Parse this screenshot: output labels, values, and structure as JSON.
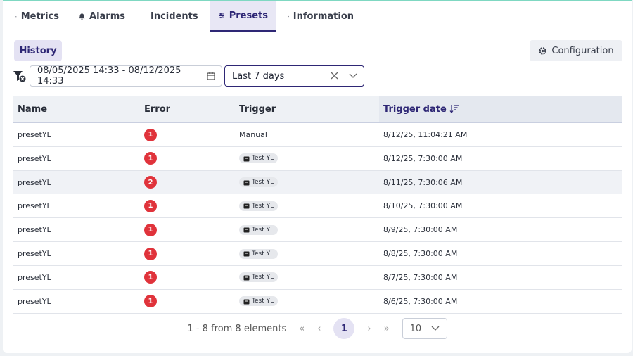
{
  "tabs": [
    "Metrics",
    "Alarms",
    "Incidents",
    "Presets",
    "Information"
  ],
  "active_tab": 3,
  "history_button": "History",
  "configuration_button": "Configuration",
  "date_range": "08/05/2025 14:33 - 08/12/2025 14:33",
  "period": "Last 7 days",
  "table": {
    "headers": [
      "Name",
      "Error",
      "Trigger",
      "Trigger date"
    ],
    "rows": [
      {
        "name": "presetYL",
        "error": 1,
        "trigger": "Manual",
        "scheduled": false,
        "date": "8/12/25, 11:04:21 AM"
      },
      {
        "name": "presetYL",
        "error": 1,
        "trigger": "Test YL",
        "scheduled": true,
        "date": "8/12/25, 7:30:00 AM"
      },
      {
        "name": "presetYL",
        "error": 2,
        "trigger": "Test YL",
        "scheduled": true,
        "date": "8/11/25, 7:30:06 AM"
      },
      {
        "name": "presetYL",
        "error": 1,
        "trigger": "Test YL",
        "scheduled": true,
        "date": "8/10/25, 7:30:00 AM"
      },
      {
        "name": "presetYL",
        "error": 1,
        "trigger": "Test YL",
        "scheduled": true,
        "date": "8/9/25, 7:30:00 AM"
      },
      {
        "name": "presetYL",
        "error": 1,
        "trigger": "Test YL",
        "scheduled": true,
        "date": "8/8/25, 7:30:00 AM"
      },
      {
        "name": "presetYL",
        "error": 1,
        "trigger": "Test YL",
        "scheduled": true,
        "date": "8/7/25, 7:30:00 AM"
      },
      {
        "name": "presetYL",
        "error": 1,
        "trigger": "Test YL",
        "scheduled": true,
        "date": "8/6/25, 7:30:00 AM"
      }
    ],
    "highlighted_row": 2
  },
  "pagination": {
    "summary": "1 - 8 from 8 elements",
    "current_page": 1,
    "page_size": 10
  }
}
